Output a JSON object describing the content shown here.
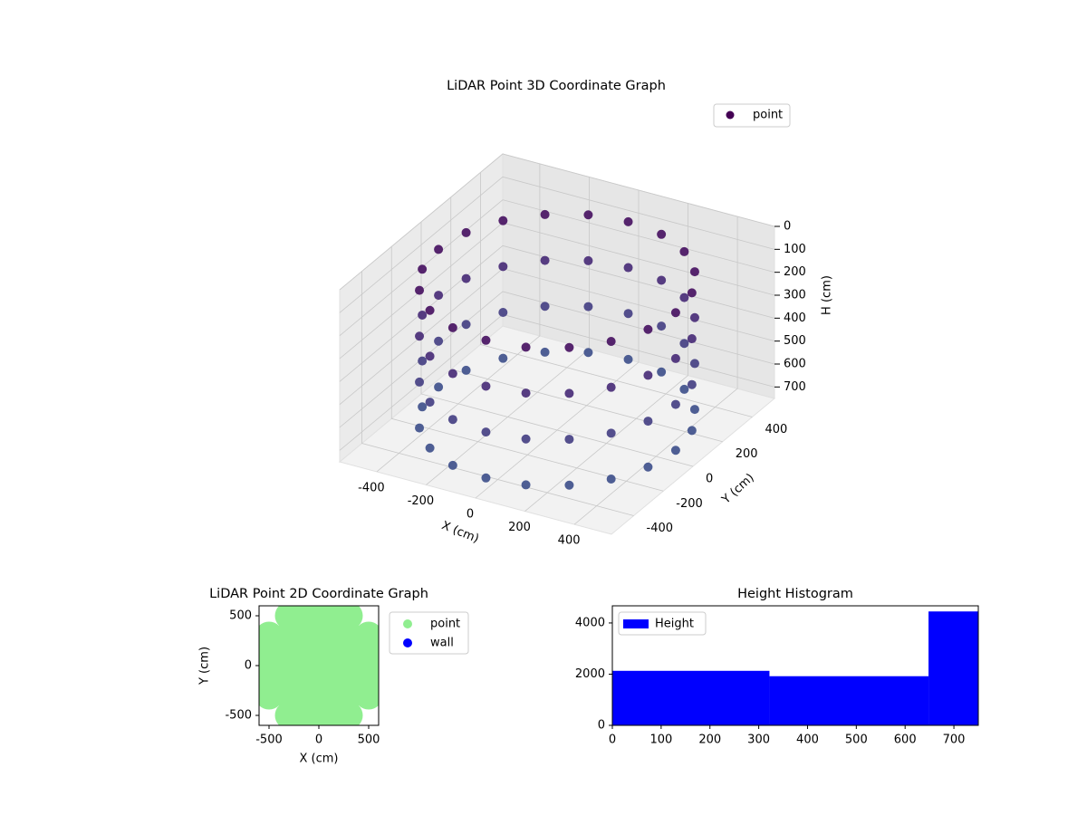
{
  "chart_data": [
    {
      "type": "scatter3d",
      "title": "LiDAR Point 3D Coordinate Graph",
      "xlabel": "X (cm)",
      "ylabel": "Y (cm)",
      "zlabel": "H (cm)",
      "xlim": [
        -550,
        550
      ],
      "ylim": [
        -550,
        550
      ],
      "zlim": [
        0,
        750
      ],
      "zinverted": true,
      "xticks": [
        -400,
        -200,
        0,
        200,
        400
      ],
      "yticks": [
        -400,
        -200,
        0,
        200,
        400
      ],
      "zticks": [
        0,
        100,
        200,
        300,
        400,
        500,
        600,
        700
      ],
      "legend": "upper right",
      "grid": true,
      "series": [
        {
          "name": "point",
          "color": "#440154",
          "colormap": [
            "#440154",
            "#46337e",
            "#3b528b"
          ],
          "x": [
            480,
            457,
            388,
            282,
            148,
            0,
            -148,
            -282,
            -388,
            -457,
            -480,
            -457,
            -388,
            -282,
            -148,
            0,
            148,
            282,
            388,
            457,
            480,
            457,
            388,
            282,
            148,
            0,
            -148,
            -282,
            -388,
            -457,
            -480,
            -457,
            -388,
            -282,
            -148,
            0,
            148,
            282,
            388,
            457,
            480,
            457,
            388,
            282,
            148,
            0,
            -148,
            -282,
            -388,
            -457,
            -480,
            -457,
            -388,
            -282,
            -148,
            0,
            148,
            282,
            388,
            457,
            480,
            457,
            388,
            282,
            148,
            0,
            -148,
            -282,
            -388,
            -457,
            -480,
            -457,
            -388,
            -282,
            -148,
            0,
            148,
            282,
            388,
            457
          ],
          "y": [
            0,
            148,
            282,
            388,
            457,
            480,
            457,
            388,
            282,
            148,
            0,
            -148,
            -282,
            -388,
            -457,
            -480,
            -457,
            -388,
            -282,
            -148,
            0,
            148,
            282,
            388,
            457,
            480,
            457,
            388,
            282,
            148,
            0,
            -148,
            -282,
            -388,
            -457,
            -480,
            -457,
            -388,
            -282,
            -148,
            0,
            148,
            282,
            388,
            457,
            480,
            457,
            388,
            282,
            148,
            0,
            -148,
            -282,
            -388,
            -457,
            -480,
            -457,
            -388,
            -282,
            -148,
            0,
            148,
            282,
            388,
            457,
            480,
            457,
            388,
            282,
            148,
            0,
            -148,
            -282,
            -388,
            -457,
            -480,
            -457,
            -388,
            -282,
            -148
          ],
          "values": [
            100,
            100,
            100,
            100,
            100,
            100,
            100,
            100,
            100,
            100,
            100,
            100,
            100,
            100,
            100,
            100,
            100,
            100,
            100,
            100,
            300,
            300,
            300,
            300,
            300,
            300,
            300,
            300,
            300,
            300,
            300,
            300,
            300,
            300,
            300,
            300,
            300,
            300,
            300,
            300,
            500,
            500,
            500,
            500,
            500,
            500,
            500,
            500,
            500,
            500,
            500,
            500,
            500,
            500,
            500,
            500,
            500,
            500,
            500,
            500,
            700,
            700,
            700,
            700,
            700,
            700,
            700,
            700,
            700,
            700,
            700,
            700,
            700,
            700,
            700,
            700,
            700,
            700,
            700,
            700
          ]
        }
      ]
    },
    {
      "type": "scatter",
      "title": "LiDAR Point 2D Coordinate Graph",
      "xlabel": "X (cm)",
      "ylabel": "Y (cm)",
      "xlim": [
        -600,
        600
      ],
      "ylim": [
        -600,
        600
      ],
      "xticks": [
        -500,
        0,
        500
      ],
      "yticks": [
        -500,
        0,
        500
      ],
      "legend": "outside upper right",
      "series": [
        {
          "name": "point",
          "color": "#90ee90",
          "x": [
            -300,
            -100,
            100,
            300,
            -500,
            -300,
            -100,
            100,
            300,
            500,
            -500,
            -300,
            -100,
            100,
            300,
            500,
            -500,
            -300,
            -100,
            100,
            300,
            500,
            -500,
            -300,
            -100,
            100,
            300,
            500,
            -300,
            -100,
            100,
            300
          ],
          "values": [
            500,
            500,
            500,
            500,
            300,
            300,
            300,
            300,
            300,
            300,
            100,
            100,
            100,
            100,
            100,
            100,
            -100,
            -100,
            -100,
            -100,
            -100,
            -100,
            -300,
            -300,
            -300,
            -300,
            -300,
            -300,
            -500,
            -500,
            -500,
            -500
          ]
        },
        {
          "name": "wall",
          "color": "#0000ff",
          "x": [],
          "values": []
        }
      ]
    },
    {
      "type": "histogram",
      "title": "Height Histogram",
      "name": "Height",
      "color": "#0000ff",
      "bins": [
        0,
        322,
        648,
        750
      ],
      "values": [
        2130,
        1920,
        4450
      ],
      "xlim": [
        0,
        750
      ],
      "ylim": [
        0,
        4670
      ],
      "xticks": [
        0,
        100,
        200,
        300,
        400,
        500,
        600,
        700
      ],
      "yticks": [
        0,
        2000,
        4000
      ],
      "legend": "upper left"
    }
  ]
}
